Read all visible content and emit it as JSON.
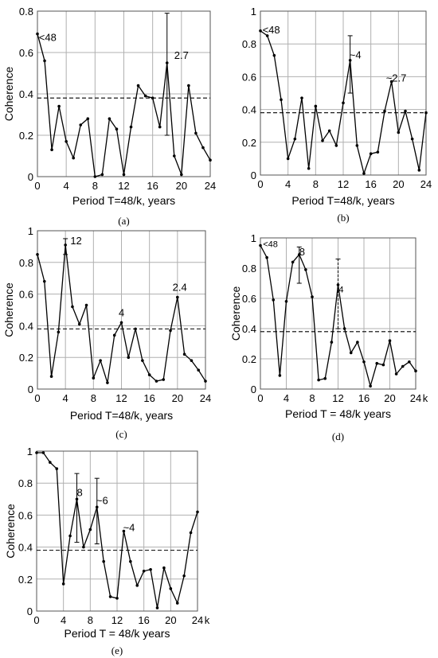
{
  "colors": {
    "line": "#000000",
    "grid": "#b0b0b0",
    "threshold": "#000000"
  },
  "chart_data": [
    {
      "type": "line",
      "panel_label": "(a)",
      "xlabel": "Period T=48/k, years",
      "ylabel": "Coherence",
      "x_unit_suffix": "",
      "xlim": [
        0,
        24
      ],
      "ylim": [
        0,
        0.8
      ],
      "xticks": [
        "0",
        "4",
        "8",
        "12",
        "16",
        "20",
        "24"
      ],
      "yticks": [
        "0",
        "0.2",
        "0.4",
        "0.6",
        "0.8"
      ],
      "grid": true,
      "threshold": 0.38,
      "x": [
        0,
        1,
        2,
        3,
        4,
        5,
        6,
        7,
        8,
        9,
        10,
        11,
        12,
        13,
        14,
        15,
        16,
        17,
        18,
        19,
        20,
        21,
        22,
        23,
        24
      ],
      "y": [
        0.69,
        0.56,
        0.13,
        0.34,
        0.17,
        0.09,
        0.25,
        0.28,
        0.0,
        0.01,
        0.28,
        0.23,
        0.01,
        0.24,
        0.44,
        0.39,
        0.38,
        0.24,
        0.55,
        0.1,
        0.01,
        0.44,
        0.21,
        0.14,
        0.08
      ],
      "error_bars": [
        {
          "x": 18,
          "low": 0.2,
          "high": 0.79
        }
      ],
      "annotations": [
        {
          "text": "<48",
          "x": 0.2,
          "y": 0.655
        },
        {
          "text": "2.7",
          "x": 19.0,
          "y": 0.57
        }
      ]
    },
    {
      "type": "line",
      "panel_label": "(b)",
      "xlabel": "Period T=48/k, years",
      "ylabel": "",
      "x_unit_suffix": "",
      "xlim": [
        0,
        24
      ],
      "ylim": [
        0,
        1
      ],
      "xticks": [
        "0",
        "4",
        "8",
        "12",
        "16",
        "20",
        "24"
      ],
      "yticks": [
        "0",
        "0.2",
        "0.4",
        "0.6",
        "0.8",
        "1"
      ],
      "grid": true,
      "threshold": 0.38,
      "x": [
        0,
        1,
        2,
        3,
        4,
        5,
        6,
        7,
        8,
        9,
        10,
        11,
        12,
        13,
        14,
        15,
        16,
        17,
        18,
        19,
        20,
        21,
        22,
        23,
        24
      ],
      "y": [
        0.88,
        0.85,
        0.73,
        0.46,
        0.1,
        0.22,
        0.47,
        0.04,
        0.42,
        0.21,
        0.27,
        0.18,
        0.44,
        0.7,
        0.18,
        0.01,
        0.13,
        0.14,
        0.39,
        0.57,
        0.26,
        0.39,
        0.22,
        0.03,
        0.38
      ],
      "error_bars": [
        {
          "x": 13,
          "low": 0.5,
          "high": 0.85
        }
      ],
      "annotations": [
        {
          "text": "<48",
          "x": 0.3,
          "y": 0.865
        },
        {
          "text": "~4",
          "x": 12.9,
          "y": 0.71
        },
        {
          "text": "~2.7",
          "x": 18.2,
          "y": 0.57
        }
      ]
    },
    {
      "type": "line",
      "panel_label": "(c)",
      "xlabel": "Period T=48/k, years",
      "ylabel": "Coherence",
      "x_unit_suffix": "",
      "xlim": [
        0,
        24
      ],
      "ylim": [
        0,
        1
      ],
      "xticks": [
        "0",
        "4",
        "8",
        "12",
        "16",
        "20",
        "24"
      ],
      "yticks": [
        "0",
        "0.2",
        "0.4",
        "0.6",
        "0.8",
        "1"
      ],
      "grid": true,
      "threshold": 0.38,
      "x": [
        0,
        1,
        2,
        3,
        4,
        5,
        6,
        7,
        8,
        9,
        10,
        11,
        12,
        13,
        14,
        15,
        16,
        17,
        18,
        19,
        20,
        21,
        22,
        23,
        24
      ],
      "y": [
        0.85,
        0.68,
        0.08,
        0.36,
        0.91,
        0.52,
        0.41,
        0.53,
        0.07,
        0.18,
        0.04,
        0.34,
        0.42,
        0.2,
        0.38,
        0.18,
        0.09,
        0.05,
        0.06,
        0.37,
        0.58,
        0.22,
        0.18,
        0.12,
        0.05
      ],
      "error_bars": [
        {
          "x": 4,
          "low": 0.85,
          "high": 0.95
        }
      ],
      "annotations": [
        {
          "text": "12",
          "x": 4.7,
          "y": 0.915
        },
        {
          "text": "4",
          "x": 11.6,
          "y": 0.46
        },
        {
          "text": "2.4",
          "x": 19.3,
          "y": 0.62
        }
      ]
    },
    {
      "type": "line",
      "panel_label": "(d)",
      "xlabel": "Period T = 48/k years",
      "ylabel": "Coherence",
      "x_unit_suffix": "k",
      "xlim": [
        0,
        24
      ],
      "ylim": [
        0,
        1
      ],
      "xticks": [
        "0",
        "4",
        "8",
        "12",
        "16",
        "20",
        "24"
      ],
      "yticks": [
        "0",
        "0.2",
        "0.4",
        "0.6",
        "0.8",
        "1"
      ],
      "grid": true,
      "threshold": 0.38,
      "x": [
        0,
        1,
        2,
        3,
        4,
        5,
        6,
        7,
        8,
        9,
        10,
        11,
        12,
        13,
        14,
        15,
        16,
        17,
        18,
        19,
        20,
        21,
        22,
        23,
        24
      ],
      "y": [
        0.95,
        0.87,
        0.59,
        0.09,
        0.58,
        0.84,
        0.89,
        0.79,
        0.61,
        0.06,
        0.07,
        0.31,
        0.69,
        0.4,
        0.24,
        0.31,
        0.18,
        0.02,
        0.17,
        0.16,
        0.32,
        0.1,
        0.15,
        0.18,
        0.12
      ],
      "error_bars": [
        {
          "x": 6,
          "low": 0.7,
          "high": 0.94
        },
        {
          "x": 12,
          "low": 0.4,
          "high": 0.86
        }
      ],
      "annotations": [
        {
          "text": "<48",
          "x": 0.4,
          "y": 0.94,
          "small": true
        },
        {
          "text": "8",
          "x": 6.0,
          "y": 0.885
        },
        {
          "text": "4",
          "x": 12.1,
          "y": 0.64,
          "small": true
        }
      ]
    },
    {
      "type": "line",
      "panel_label": "(e)",
      "xlabel": "Period T = 48/k years",
      "ylabel": "Coherence",
      "x_unit_suffix": "k",
      "xlim": [
        0,
        24
      ],
      "ylim": [
        0,
        1
      ],
      "xticks": [
        "0",
        "4",
        "8",
        "12",
        "16",
        "20",
        "24"
      ],
      "yticks": [
        "0",
        "0.2",
        "0.4",
        "0.6",
        "0.8",
        "1"
      ],
      "grid": true,
      "threshold": 0.38,
      "x": [
        0,
        1,
        2,
        3,
        4,
        5,
        6,
        7,
        8,
        9,
        10,
        11,
        12,
        13,
        14,
        15,
        16,
        17,
        18,
        19,
        20,
        21,
        22,
        23,
        24
      ],
      "y": [
        0.99,
        0.99,
        0.93,
        0.89,
        0.17,
        0.47,
        0.7,
        0.4,
        0.51,
        0.65,
        0.31,
        0.09,
        0.08,
        0.5,
        0.31,
        0.16,
        0.25,
        0.26,
        0.02,
        0.27,
        0.14,
        0.05,
        0.22,
        0.49,
        0.62
      ],
      "error_bars": [
        {
          "x": 6,
          "low": 0.43,
          "high": 0.86
        },
        {
          "x": 9,
          "low": 0.42,
          "high": 0.83
        }
      ],
      "annotations": [
        {
          "text": "8",
          "x": 6.0,
          "y": 0.72
        },
        {
          "text": "~6",
          "x": 8.9,
          "y": 0.67
        },
        {
          "text": "~4",
          "x": 12.9,
          "y": 0.5
        }
      ]
    }
  ]
}
